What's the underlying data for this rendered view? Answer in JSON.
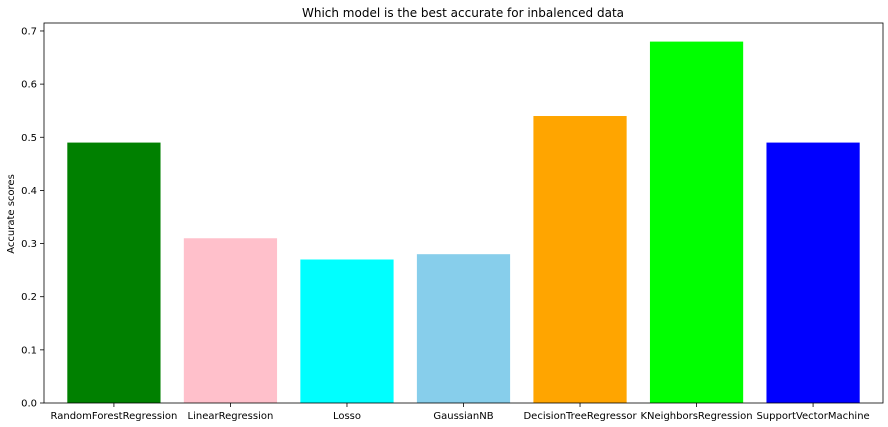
{
  "chart_data": {
    "type": "bar",
    "title": "Which model is the best accurate for inbalenced data",
    "xlabel": "",
    "ylabel": "Accurate scores",
    "categories": [
      "RandomForestRegression",
      "LinearRegression",
      "Losso",
      "GaussianNB",
      "DecisionTreeRegressor",
      "KNeighborsRegression",
      "SupportVectorMachine"
    ],
    "values": [
      0.49,
      0.31,
      0.27,
      0.28,
      0.54,
      0.68,
      0.49
    ],
    "colors": [
      "#008000",
      "#ffc0cb",
      "#00ffff",
      "#87ceeb",
      "#ffa500",
      "#00ff00",
      "#0000ff"
    ],
    "ylim": [
      0,
      0.715
    ],
    "yticks": [
      "0.0",
      "0.1",
      "0.2",
      "0.3",
      "0.4",
      "0.5",
      "0.6",
      "0.7"
    ],
    "grid": false,
    "legend": "none"
  }
}
